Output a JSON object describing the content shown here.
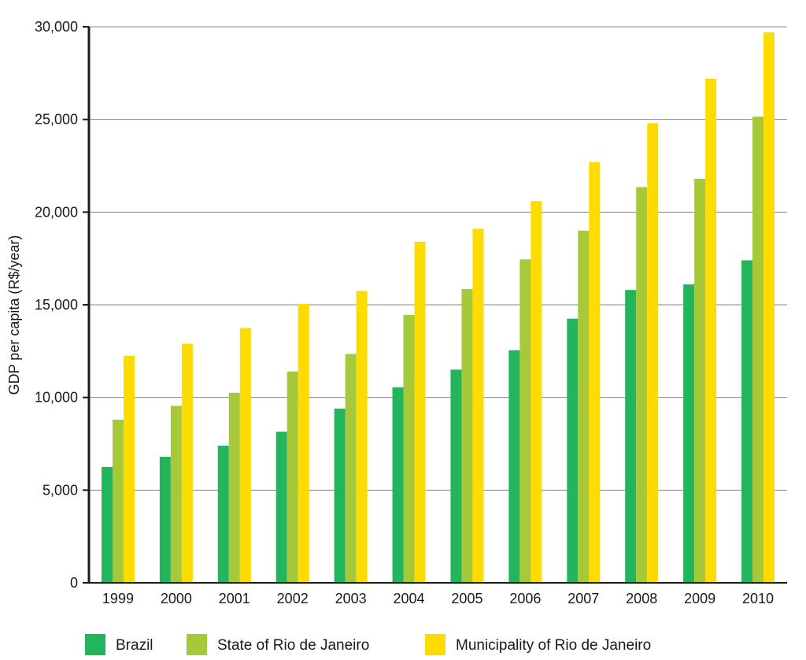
{
  "chart_data": {
    "type": "bar",
    "title": "",
    "xlabel": "",
    "ylabel": "GDP per capita (R$/year)",
    "ylim": [
      0,
      30000
    ],
    "yticks": [
      0,
      5000,
      10000,
      15000,
      20000,
      25000,
      30000
    ],
    "ytick_labels": [
      "0",
      "5,000",
      "10,000",
      "15,000",
      "20,000",
      "25,000",
      "30,000"
    ],
    "grid": true,
    "legend_position": "bottom",
    "categories": [
      "1999",
      "2000",
      "2001",
      "2002",
      "2003",
      "2004",
      "2005",
      "2006",
      "2007",
      "2008",
      "2009",
      "2010"
    ],
    "series": [
      {
        "name": "Brazil",
        "color": "#22b55c",
        "values": [
          6250,
          6800,
          7400,
          8150,
          9400,
          10550,
          11500,
          12550,
          14250,
          15800,
          16100,
          17400
        ]
      },
      {
        "name": "State of Rio de Janeiro",
        "color": "#a6c93a",
        "values": [
          8800,
          9550,
          10250,
          11400,
          12350,
          14450,
          15850,
          17450,
          19000,
          21350,
          21800,
          25150
        ]
      },
      {
        "name": "Municipality of Rio de Janeiro",
        "color": "#ffdc00",
        "values": [
          12250,
          12900,
          13750,
          15050,
          15750,
          18400,
          19100,
          20600,
          22700,
          24800,
          27200,
          29700
        ]
      }
    ]
  }
}
